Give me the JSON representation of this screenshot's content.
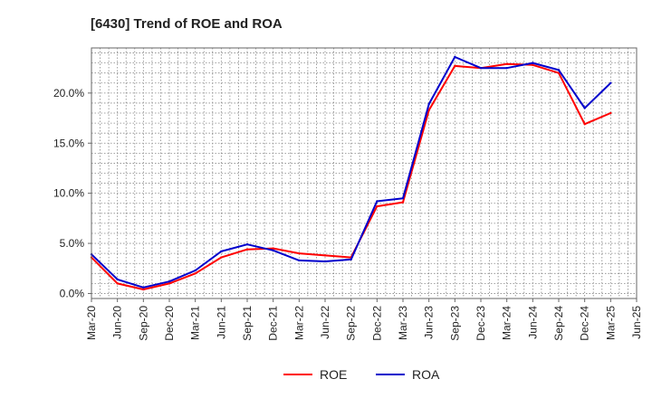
{
  "chart_data": {
    "type": "line",
    "title": "[6430]  Trend of ROE and ROA",
    "xlabel": "",
    "ylabel": "",
    "ylim": [
      -0.5,
      24.5
    ],
    "yticks": [
      0,
      5,
      10,
      15,
      20
    ],
    "ytick_labels": [
      "0.0%",
      "5.0%",
      "10.0%",
      "15.0%",
      "20.0%"
    ],
    "categories": [
      "Mar-20",
      "Jun-20",
      "Sep-20",
      "Dec-20",
      "Mar-21",
      "Jun-21",
      "Sep-21",
      "Dec-21",
      "Mar-22",
      "Jun-22",
      "Sep-22",
      "Dec-22",
      "Mar-23",
      "Jun-23",
      "Sep-23",
      "Dec-23",
      "Mar-24",
      "Jun-24",
      "Sep-24",
      "Dec-24",
      "Mar-25",
      "Jun-25"
    ],
    "grid": true,
    "legend_position": "bottom-center",
    "series": [
      {
        "name": "ROE",
        "color": "#ff0000",
        "values": [
          3.6,
          1.0,
          0.4,
          1.0,
          2.0,
          3.6,
          4.4,
          4.5,
          4.0,
          3.8,
          3.6,
          8.7,
          9.1,
          18.3,
          22.7,
          22.5,
          22.9,
          22.8,
          22.0,
          16.9,
          18.0,
          null
        ]
      },
      {
        "name": "ROA",
        "color": "#0000cc",
        "values": [
          3.9,
          1.4,
          0.6,
          1.2,
          2.3,
          4.2,
          4.9,
          4.3,
          3.3,
          3.2,
          3.4,
          9.2,
          9.5,
          18.9,
          23.6,
          22.5,
          22.5,
          23.0,
          22.3,
          18.5,
          21.0,
          null
        ]
      }
    ]
  }
}
